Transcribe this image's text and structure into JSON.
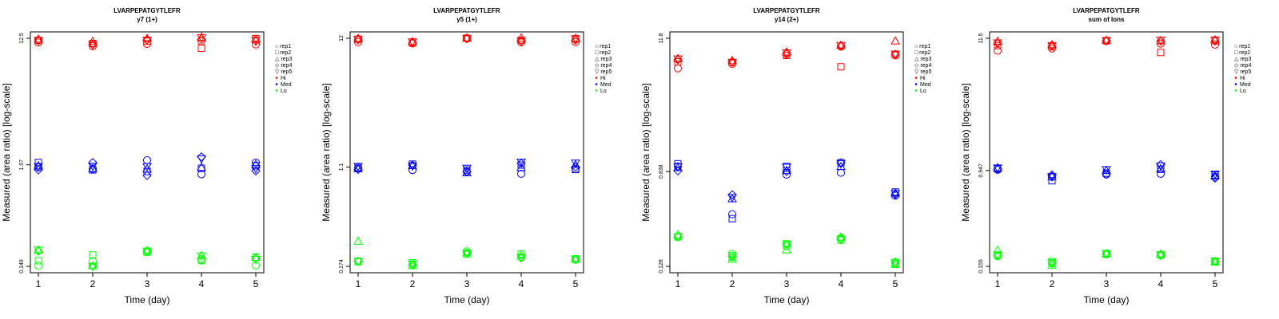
{
  "chart_data": [
    {
      "type": "scatter",
      "title": "LVARPEPATGYTLEFR",
      "subtitle": "y7 (1+)",
      "xlabel": "Time (day)",
      "ylabel": "Measured (area ratio) [log-scale]",
      "x_ticks": [
        "1",
        "2",
        "3",
        "4",
        "5"
      ],
      "y_ticks": [
        {
          "label": "0.149",
          "value": 0.149
        },
        {
          "label": "1.07",
          "value": 1.07
        },
        {
          "label": "12.5",
          "value": 12.5
        }
      ],
      "ylim": [
        0.149,
        12.5
      ],
      "log_y": true,
      "series": [
        {
          "name": "Hi",
          "color": "#ff0000",
          "reps": [
            [
              11.5,
              10.7,
              11.2,
              11.8,
              11.1
            ],
            [
              12.0,
              11.3,
              11.8,
              10.3,
              12.4
            ],
            [
              12.3,
              11.8,
              12.5,
              12.8,
              12.3
            ],
            [
              12.1,
              11.0,
              12.1,
              12.2,
              11.8
            ],
            [
              11.9,
              11.0,
              12.0,
              12.6,
              12.0
            ]
          ]
        },
        {
          "name": "Med",
          "color": "#0000ff",
          "reps": [
            [
              1.02,
              0.99,
              1.17,
              0.89,
              1.12
            ],
            [
              1.12,
              0.97,
              0.94,
              1.0,
              1.05
            ],
            [
              1.05,
              1.0,
              0.99,
              1.02,
              1.08
            ],
            [
              0.97,
              1.12,
              0.87,
              1.25,
              0.95
            ],
            [
              1.03,
              1.04,
              1.03,
              1.2,
              0.99
            ]
          ]
        },
        {
          "name": "Lo",
          "color": "#00ff00",
          "reps": [
            [
              0.151,
              0.165,
              0.198,
              0.172,
              0.152
            ],
            [
              0.166,
              0.186,
              0.196,
              0.167,
              0.178
            ],
            [
              0.205,
              0.151,
              0.203,
              0.184,
              0.178
            ],
            [
              0.2,
              0.15,
              0.202,
              0.168,
              0.174
            ],
            [
              0.204,
              0.148,
              0.2,
              0.182,
              0.17
            ]
          ]
        }
      ],
      "legend": {
        "position": "top-right",
        "shape_entries": [
          "rep1",
          "rep2",
          "rep3",
          "rep4",
          "rep5"
        ],
        "color_entries": [
          "Hi",
          "Med",
          "Lo"
        ]
      }
    },
    {
      "type": "scatter",
      "title": "LVARPEPATGYTLEFR",
      "subtitle": "y5 (1+)",
      "xlabel": "Time (day)",
      "ylabel": "Measured (area ratio) [log-scale]",
      "x_ticks": [
        "1",
        "2",
        "3",
        "4",
        "5"
      ],
      "y_ticks": [
        {
          "label": "0.174",
          "value": 0.174
        },
        {
          "label": "1.1",
          "value": 1.1
        },
        {
          "label": "12",
          "value": 12
        }
      ],
      "ylim": [
        0.174,
        12
      ],
      "log_y": true,
      "series": [
        {
          "name": "Hi",
          "color": "#ff0000",
          "reps": [
            [
              11.2,
              10.9,
              12.0,
              11.1,
              11.2
            ],
            [
              11.8,
              11.0,
              12.0,
              11.6,
              11.9
            ],
            [
              12.0,
              11.3,
              12.1,
              12.1,
              12.0
            ],
            [
              11.7,
              11.0,
              11.9,
              11.4,
              11.6
            ],
            [
              11.7,
              11.2,
              11.9,
              11.3,
              11.8
            ]
          ]
        },
        {
          "name": "Med",
          "color": "#0000ff",
          "reps": [
            [
              1.09,
              1.04,
              1.01,
              0.97,
              1.06
            ],
            [
              1.07,
              1.16,
              1.04,
              1.14,
              1.05
            ],
            [
              1.07,
              1.13,
              0.99,
              1.09,
              1.15
            ],
            [
              1.05,
              1.14,
              1.01,
              1.18,
              1.1
            ],
            [
              1.11,
              1.12,
              1.07,
              1.2,
              1.18
            ]
          ]
        },
        {
          "name": "Lo",
          "color": "#00ff00",
          "reps": [
            [
              0.192,
              0.18,
              0.23,
              0.206,
              0.197
            ],
            [
              0.19,
              0.186,
              0.218,
              0.219,
              0.2
            ],
            [
              0.278,
              0.177,
              0.224,
              0.215,
              0.199
            ],
            [
              0.191,
              0.178,
              0.223,
              0.203,
              0.197
            ],
            [
              0.19,
              0.182,
              0.222,
              0.205,
              0.198
            ]
          ]
        }
      ],
      "legend": {
        "position": "top-right",
        "shape_entries": [
          "rep1",
          "rep2",
          "rep3",
          "rep4",
          "rep5"
        ],
        "color_entries": [
          "Hi",
          "Med",
          "Lo"
        ]
      }
    },
    {
      "type": "scatter",
      "title": "LVARPEPATGYTLEFR",
      "subtitle": "y14 (2+)",
      "xlabel": "Time (day)",
      "ylabel": "Measured (area ratio) [log-scale]",
      "x_ticks": [
        "1",
        "2",
        "3",
        "4",
        "5"
      ],
      "y_ticks": [
        {
          "label": "0.128",
          "value": 0.128
        },
        {
          "label": "0.838",
          "value": 0.838
        },
        {
          "label": "11.8",
          "value": 11.8
        }
      ],
      "ylim": [
        0.128,
        11.8
      ],
      "log_y": true,
      "series": [
        {
          "name": "Hi",
          "color": "#ff0000",
          "reps": [
            [
              6.5,
              7.1,
              8.6,
              10.0,
              8.4
            ],
            [
              7.4,
              7.3,
              8.4,
              6.7,
              8.5
            ],
            [
              7.9,
              7.6,
              9.0,
              10.3,
              11.2
            ],
            [
              7.7,
              7.4,
              8.7,
              10.1,
              8.6
            ],
            [
              7.8,
              7.3,
              8.8,
              10.2,
              8.6
            ]
          ]
        },
        {
          "name": "Med",
          "color": "#0000ff",
          "reps": [
            [
              0.93,
              0.36,
              0.79,
              0.82,
              0.52
            ],
            [
              0.98,
              0.33,
              0.93,
              1.0,
              0.56
            ],
            [
              0.91,
              0.49,
              0.86,
              0.93,
              0.55
            ],
            [
              0.85,
              0.53,
              0.84,
              1.0,
              0.53
            ],
            [
              0.92,
              0.5,
              0.91,
              0.98,
              0.54
            ]
          ]
        },
        {
          "name": "Lo",
          "color": "#00ff00",
          "reps": [
            [
              0.23,
              0.164,
              0.19,
              0.225,
              0.138
            ],
            [
              0.23,
              0.153,
              0.2,
              0.215,
              0.133
            ],
            [
              0.24,
              0.148,
              0.178,
              0.23,
              0.136
            ],
            [
              0.23,
              0.156,
              0.198,
              0.22,
              0.14
            ],
            [
              0.23,
              0.158,
              0.197,
              0.219,
              0.138
            ]
          ]
        }
      ],
      "legend": {
        "position": "top-right",
        "shape_entries": [
          "rep1",
          "rep2",
          "rep3",
          "rep4",
          "rep5"
        ],
        "color_entries": [
          "Hi",
          "Med",
          "Lo"
        ]
      }
    },
    {
      "type": "scatter",
      "title": "LVARPEPATGYTLEFR",
      "subtitle": "sum of Ions",
      "xlabel": "Time (day)",
      "ylabel": "Measured (area ratio) [log-scale]",
      "x_ticks": [
        "1",
        "2",
        "3",
        "4",
        "5"
      ],
      "y_ticks": [
        {
          "label": "0.155",
          "value": 0.155
        },
        {
          "label": "0.947",
          "value": 0.947
        },
        {
          "label": "11.5",
          "value": 11.5
        }
      ],
      "ylim": [
        0.155,
        11.5
      ],
      "log_y": true,
      "series": [
        {
          "name": "Hi",
          "color": "#ff0000",
          "reps": [
            [
              9.1,
              9.5,
              10.9,
              10.4,
              10.2
            ],
            [
              10.0,
              9.8,
              11.0,
              8.8,
              11.0
            ],
            [
              10.9,
              10.2,
              11.1,
              11.0,
              11.2
            ],
            [
              10.4,
              9.9,
              11.0,
              10.9,
              10.9
            ],
            [
              10.5,
              10.0,
              11.0,
              11.1,
              11.1
            ]
          ]
        },
        {
          "name": "Med",
          "color": "#0000ff",
          "reps": [
            [
              0.96,
              0.84,
              0.88,
              0.89,
              0.84
            ],
            [
              0.98,
              0.78,
              0.9,
              0.97,
              0.87
            ],
            [
              1.0,
              0.85,
              0.95,
              0.98,
              0.86
            ],
            [
              0.97,
              0.87,
              0.88,
              1.06,
              0.82
            ],
            [
              0.99,
              0.84,
              0.96,
              1.03,
              0.88
            ]
          ]
        },
        {
          "name": "Lo",
          "color": "#00ff00",
          "reps": [
            [
              0.188,
              0.164,
              0.195,
              0.192,
              0.17
            ],
            [
              0.191,
              0.17,
              0.196,
              0.193,
              0.171
            ],
            [
              0.21,
              0.159,
              0.198,
              0.196,
              0.169
            ],
            [
              0.19,
              0.164,
              0.195,
              0.19,
              0.17
            ],
            [
              0.192,
              0.166,
              0.197,
              0.192,
              0.171
            ]
          ]
        }
      ],
      "legend": {
        "position": "top-right",
        "shape_entries": [
          "rep1",
          "rep2",
          "rep3",
          "rep4",
          "rep5"
        ],
        "color_entries": [
          "Hi",
          "Med",
          "Lo"
        ]
      }
    }
  ]
}
